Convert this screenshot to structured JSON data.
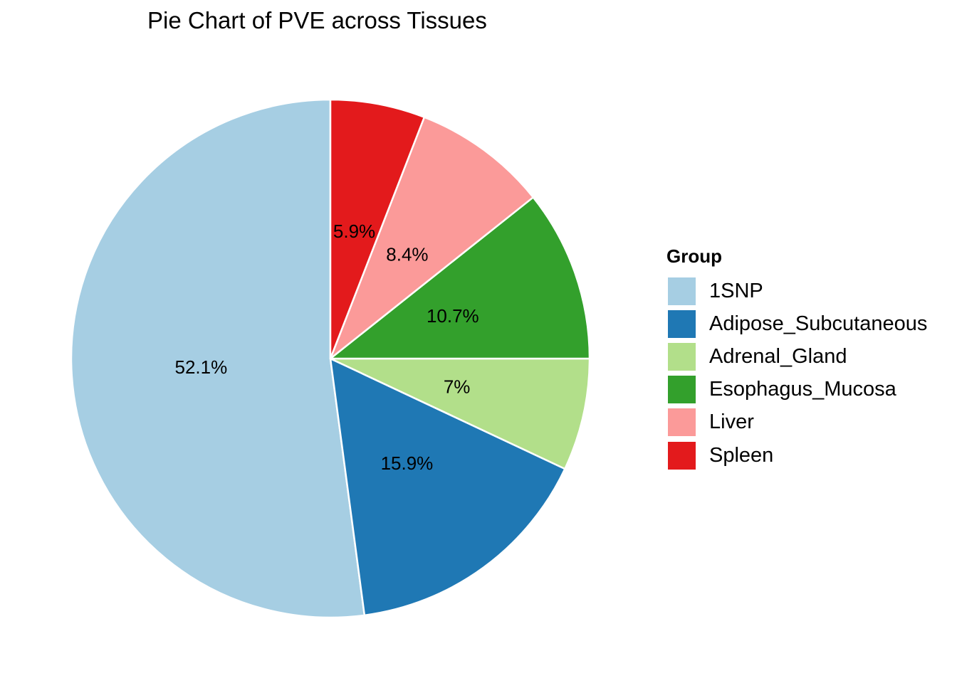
{
  "chart_data": {
    "type": "pie",
    "title": "Pie Chart of PVE across Tissues",
    "legend_title": "Group",
    "legend_position": "right",
    "start": "top",
    "direction": "counterclockwise",
    "slices": [
      {
        "label": "1SNP",
        "value": 52.1,
        "display": "52.1%",
        "color": "#A6CEE3"
      },
      {
        "label": "Adipose_Subcutaneous",
        "value": 15.9,
        "display": "15.9%",
        "color": "#1F78B4"
      },
      {
        "label": "Adrenal_Gland",
        "value": 7.0,
        "display": "7%",
        "color": "#B2DF8A"
      },
      {
        "label": "Esophagus_Mucosa",
        "value": 10.7,
        "display": "10.7%",
        "color": "#33A02C"
      },
      {
        "label": "Liver",
        "value": 8.4,
        "display": "8.4%",
        "color": "#FB9A99"
      },
      {
        "label": "Spleen",
        "value": 5.9,
        "display": "5.9%",
        "color": "#E31A1C"
      }
    ]
  }
}
